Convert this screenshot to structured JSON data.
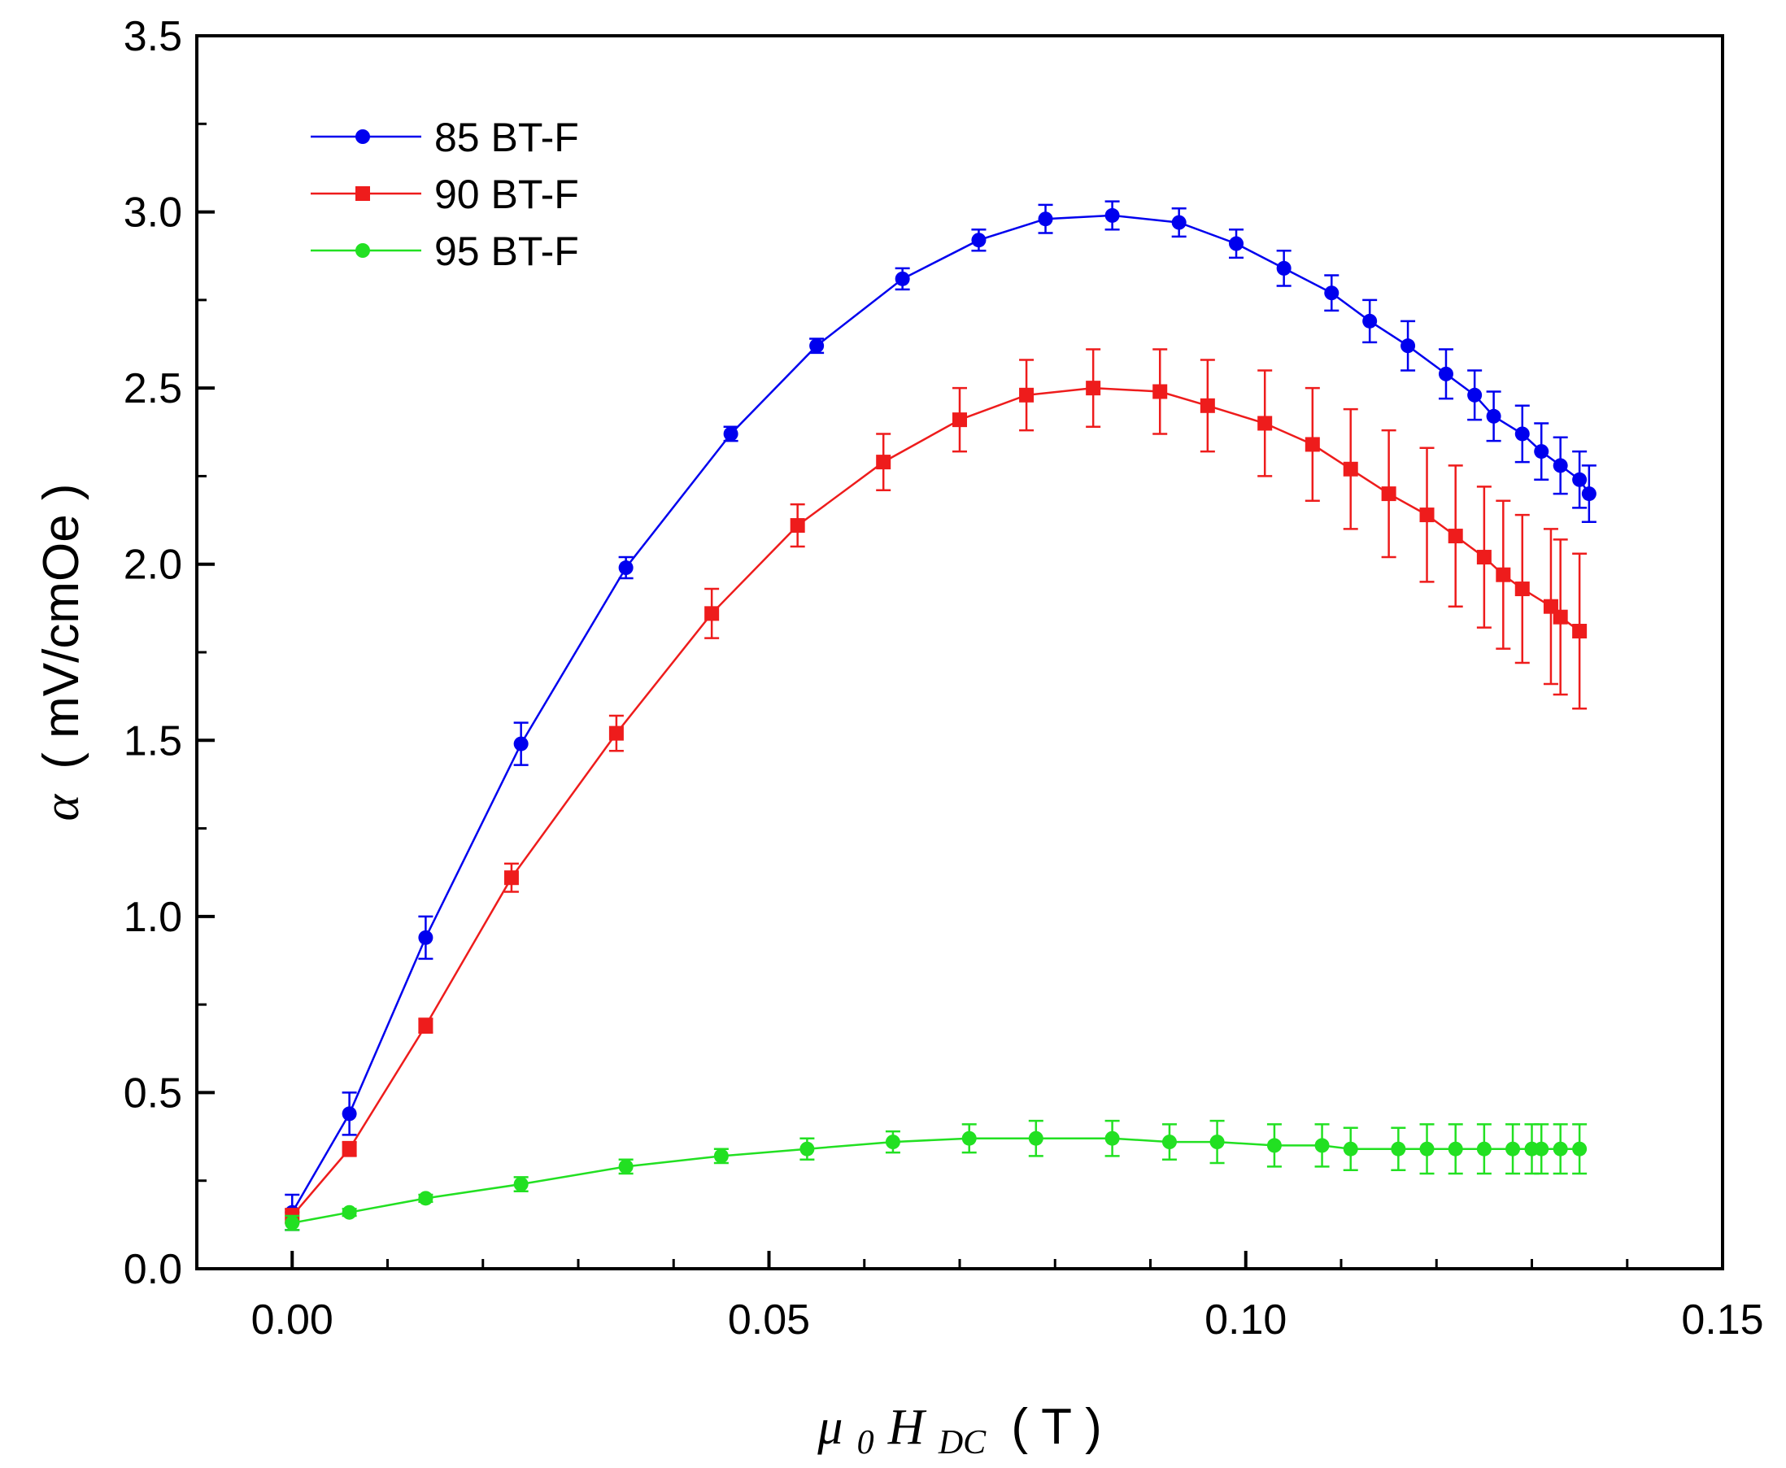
{
  "chart_data": {
    "type": "line",
    "title": "",
    "xlabel": {
      "symbol": "μ",
      "sub0": "0",
      "main": "H",
      "subDC": "DC",
      "unit": "( T )"
    },
    "ylabel": {
      "symbol": "α",
      "unit": "( mV/cmOe )"
    },
    "xlim": [
      -0.01,
      0.15
    ],
    "ylim": [
      0.0,
      3.5
    ],
    "x_ticks": [
      0.0,
      0.05,
      0.1,
      0.15
    ],
    "x_tick_labels": [
      "0.00",
      "0.05",
      "0.10",
      "0.15"
    ],
    "y_ticks": [
      0.0,
      0.5,
      1.0,
      1.5,
      2.0,
      2.5,
      3.0,
      3.5
    ],
    "y_tick_labels": [
      "0.0",
      "0.5",
      "1.0",
      "1.5",
      "2.0",
      "2.5",
      "3.0",
      "3.5"
    ],
    "grid": false,
    "legend_position": "top-left",
    "series": [
      {
        "name": "85 BT-F",
        "color": "#0000ee",
        "marker": "circle",
        "x": [
          0.0,
          0.006,
          0.014,
          0.024,
          0.035,
          0.046,
          0.055,
          0.064,
          0.072,
          0.079,
          0.086,
          0.093,
          0.099,
          0.104,
          0.109,
          0.113,
          0.117,
          0.121,
          0.124,
          0.126,
          0.129,
          0.131,
          0.133,
          0.135,
          0.136
        ],
        "y": [
          0.16,
          0.44,
          0.94,
          1.49,
          1.99,
          2.37,
          2.62,
          2.81,
          2.92,
          2.98,
          2.99,
          2.97,
          2.91,
          2.84,
          2.77,
          2.69,
          2.62,
          2.54,
          2.48,
          2.42,
          2.37,
          2.32,
          2.28,
          2.24,
          2.2
        ],
        "err": [
          0.05,
          0.06,
          0.06,
          0.06,
          0.03,
          0.02,
          0.02,
          0.03,
          0.03,
          0.04,
          0.04,
          0.04,
          0.04,
          0.05,
          0.05,
          0.06,
          0.07,
          0.07,
          0.07,
          0.07,
          0.08,
          0.08,
          0.08,
          0.08,
          0.08
        ]
      },
      {
        "name": "90 BT-F",
        "color": "#ee1c1c",
        "marker": "square",
        "x": [
          0.0,
          0.006,
          0.014,
          0.023,
          0.034,
          0.044,
          0.053,
          0.062,
          0.07,
          0.077,
          0.084,
          0.091,
          0.096,
          0.102,
          0.107,
          0.111,
          0.115,
          0.119,
          0.122,
          0.125,
          0.127,
          0.129,
          0.132,
          0.133,
          0.135
        ],
        "y": [
          0.15,
          0.34,
          0.69,
          1.11,
          1.52,
          1.86,
          2.11,
          2.29,
          2.41,
          2.48,
          2.5,
          2.49,
          2.45,
          2.4,
          2.34,
          2.27,
          2.2,
          2.14,
          2.08,
          2.02,
          1.97,
          1.93,
          1.88,
          1.85,
          1.81
        ],
        "err": [
          0.02,
          0.02,
          0.02,
          0.04,
          0.05,
          0.07,
          0.06,
          0.08,
          0.09,
          0.1,
          0.11,
          0.12,
          0.13,
          0.15,
          0.16,
          0.17,
          0.18,
          0.19,
          0.2,
          0.2,
          0.21,
          0.21,
          0.22,
          0.22,
          0.22
        ]
      },
      {
        "name": "95 BT-F",
        "color": "#22e022",
        "marker": "circle",
        "x": [
          0.0,
          0.006,
          0.014,
          0.024,
          0.035,
          0.045,
          0.054,
          0.063,
          0.071,
          0.078,
          0.086,
          0.092,
          0.097,
          0.103,
          0.108,
          0.111,
          0.116,
          0.119,
          0.122,
          0.125,
          0.128,
          0.13,
          0.131,
          0.133,
          0.135
        ],
        "y": [
          0.13,
          0.16,
          0.2,
          0.24,
          0.29,
          0.32,
          0.34,
          0.36,
          0.37,
          0.37,
          0.37,
          0.36,
          0.36,
          0.35,
          0.35,
          0.34,
          0.34,
          0.34,
          0.34,
          0.34,
          0.34,
          0.34,
          0.34,
          0.34,
          0.34
        ],
        "err": [
          0.02,
          0.01,
          0.01,
          0.02,
          0.02,
          0.02,
          0.03,
          0.03,
          0.04,
          0.05,
          0.05,
          0.05,
          0.06,
          0.06,
          0.06,
          0.06,
          0.06,
          0.07,
          0.07,
          0.07,
          0.07,
          0.07,
          0.07,
          0.07,
          0.07
        ]
      }
    ]
  }
}
